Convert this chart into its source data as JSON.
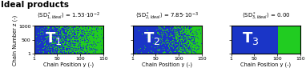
{
  "title": "Ideal products",
  "panels": [
    {
      "label": "T$_1$",
      "pattern": "gradient_linear",
      "exponent": 1.0
    },
    {
      "label": "T$_2$",
      "pattern": "gradient_steep",
      "exponent": 2.0
    },
    {
      "label": "T$_3$",
      "pattern": "block",
      "split": 0.667
    }
  ],
  "subtitle_texts": [
    "$\\langle$SD$^*_{1,Ideal}\\rangle$ = 1.53$\\cdot$10$^{-2}$",
    "$\\langle$SD$^*_{2,Ideal}\\rangle$ = 7.85$\\cdot$10$^{-3}$",
    "$\\langle$SD$^*_{3,Ideal}\\rangle$ = 0.00"
  ],
  "blue": [
    0.102,
    0.208,
    0.784
  ],
  "green": [
    0.133,
    0.8,
    0.133
  ],
  "xlim": [
    1,
    150
  ],
  "ylim": [
    1,
    1000
  ],
  "xticks": [
    1,
    50,
    100,
    150
  ],
  "yticks": [
    1,
    500,
    1000
  ],
  "xlabel": "Chain Position y (-)",
  "ylabel": "Chain Number z (-)",
  "nx": 150,
  "ny": 1000,
  "title_fontsize": 7.5,
  "label_fontsize": 13,
  "subtitle_fontsize": 5.0,
  "tick_fontsize": 4.5,
  "axis_label_fontsize": 4.8
}
